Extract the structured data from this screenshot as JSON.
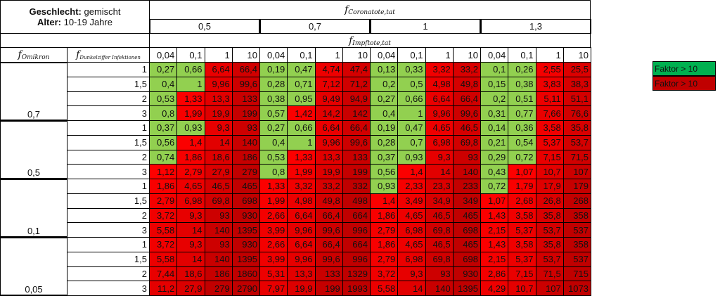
{
  "header": {
    "line1_label": "Geschlecht:",
    "line1_value": "gemischt",
    "line2_label": "Alter:",
    "line2_value": "10-19 Jahre"
  },
  "column_header": {
    "var": "f",
    "sub": "Coronatote,tat",
    "groups": [
      "0,5",
      "0,7",
      "1",
      "1,3"
    ]
  },
  "sub_header": {
    "var": "f",
    "sub": "Impftote,tat",
    "values": [
      "0,04",
      "0,1",
      "1",
      "10"
    ]
  },
  "row_header": {
    "var_omikron": "f",
    "sub_omikron": "Omikron",
    "var_dunkel": "f",
    "sub_dunkel": "Dunkelziffer Infektionen"
  },
  "row_groups": [
    {
      "label": "0,7",
      "rows": [
        {
          "label": "1",
          "cells": [
            "0,27",
            "0,66",
            "6,64",
            "66,4",
            "0,19",
            "0,47",
            "4,74",
            "47,4",
            "0,13",
            "0,33",
            "3,32",
            "33,2",
            "0,1",
            "0,26",
            "2,55",
            "25,5"
          ]
        },
        {
          "label": "1,5",
          "cells": [
            "0,4",
            "1",
            "9,96",
            "99,6",
            "0,28",
            "0,71",
            "7,12",
            "71,2",
            "0,2",
            "0,5",
            "4,98",
            "49,8",
            "0,15",
            "0,38",
            "3,83",
            "38,3"
          ]
        },
        {
          "label": "2",
          "cells": [
            "0,53",
            "1,33",
            "13,3",
            "133",
            "0,38",
            "0,95",
            "9,49",
            "94,9",
            "0,27",
            "0,66",
            "6,64",
            "66,4",
            "0,2",
            "0,51",
            "5,11",
            "51,1"
          ]
        },
        {
          "label": "3",
          "cells": [
            "0,8",
            "1,99",
            "19,9",
            "199",
            "0,57",
            "1,42",
            "14,2",
            "142",
            "0,4",
            "1",
            "9,96",
            "99,6",
            "0,31",
            "0,77",
            "7,66",
            "76,6"
          ]
        }
      ]
    },
    {
      "label": "0,5",
      "rows": [
        {
          "label": "1",
          "cells": [
            "0,37",
            "0,93",
            "9,3",
            "93",
            "0,27",
            "0,66",
            "6,64",
            "66,4",
            "0,19",
            "0,47",
            "4,65",
            "46,5",
            "0,14",
            "0,36",
            "3,58",
            "35,8"
          ]
        },
        {
          "label": "1,5",
          "cells": [
            "0,56",
            "1,4",
            "14",
            "140",
            "0,4",
            "1",
            "9,96",
            "99,6",
            "0,28",
            "0,7",
            "6,98",
            "69,8",
            "0,21",
            "0,54",
            "5,37",
            "53,7"
          ]
        },
        {
          "label": "2",
          "cells": [
            "0,74",
            "1,86",
            "18,6",
            "186",
            "0,53",
            "1,33",
            "13,3",
            "133",
            "0,37",
            "0,93",
            "9,3",
            "93",
            "0,29",
            "0,72",
            "7,15",
            "71,5"
          ]
        },
        {
          "label": "3",
          "cells": [
            "1,12",
            "2,79",
            "27,9",
            "279",
            "0,8",
            "1,99",
            "19,9",
            "199",
            "0,56",
            "1,4",
            "14",
            "140",
            "0,43",
            "1,07",
            "10,7",
            "107"
          ]
        }
      ]
    },
    {
      "label": "0,1",
      "rows": [
        {
          "label": "1",
          "cells": [
            "1,86",
            "4,65",
            "46,5",
            "465",
            "1,33",
            "3,32",
            "33,2",
            "332",
            "0,93",
            "2,33",
            "23,3",
            "233",
            "0,72",
            "1,79",
            "17,9",
            "179"
          ]
        },
        {
          "label": "1,5",
          "cells": [
            "2,79",
            "6,98",
            "69,8",
            "698",
            "1,99",
            "4,98",
            "49,8",
            "498",
            "1,4",
            "3,49",
            "34,9",
            "349",
            "1,07",
            "2,68",
            "26,8",
            "268"
          ]
        },
        {
          "label": "2",
          "cells": [
            "3,72",
            "9,3",
            "93",
            "930",
            "2,66",
            "6,64",
            "66,4",
            "664",
            "1,86",
            "4,65",
            "46,5",
            "465",
            "1,43",
            "3,58",
            "35,8",
            "358"
          ]
        },
        {
          "label": "3",
          "cells": [
            "5,58",
            "14",
            "140",
            "1395",
            "3,99",
            "9,96",
            "99,6",
            "996",
            "2,79",
            "6,98",
            "69,8",
            "698",
            "2,15",
            "5,37",
            "53,7",
            "537"
          ]
        }
      ]
    },
    {
      "label": "0,05",
      "rows": [
        {
          "label": "1",
          "cells": [
            "3,72",
            "9,3",
            "93",
            "930",
            "2,66",
            "6,64",
            "66,4",
            "664",
            "1,86",
            "4,65",
            "46,5",
            "465",
            "1,43",
            "3,58",
            "35,8",
            "358"
          ]
        },
        {
          "label": "1,5",
          "cells": [
            "5,58",
            "14",
            "140",
            "1395",
            "3,99",
            "9,96",
            "99,6",
            "996",
            "2,79",
            "6,98",
            "69,8",
            "698",
            "2,15",
            "5,37",
            "53,7",
            "537"
          ]
        },
        {
          "label": "2",
          "cells": [
            "7,44",
            "18,6",
            "186",
            "1860",
            "5,31",
            "13,3",
            "133",
            "1329",
            "3,72",
            "9,3",
            "93",
            "930",
            "2,86",
            "7,15",
            "71,5",
            "715"
          ]
        },
        {
          "label": "3",
          "cells": [
            "11,2",
            "27,9",
            "279",
            "2790",
            "7,97",
            "19,9",
            "199",
            "1993",
            "5,58",
            "14",
            "140",
            "1395",
            "4,29",
            "10,7",
            "107",
            "1073"
          ]
        }
      ]
    }
  ],
  "legend": [
    {
      "label": "Faktor > 10",
      "color": "#00b050"
    },
    {
      "label": "Faktor > 10",
      "color": "#c00000"
    }
  ]
}
